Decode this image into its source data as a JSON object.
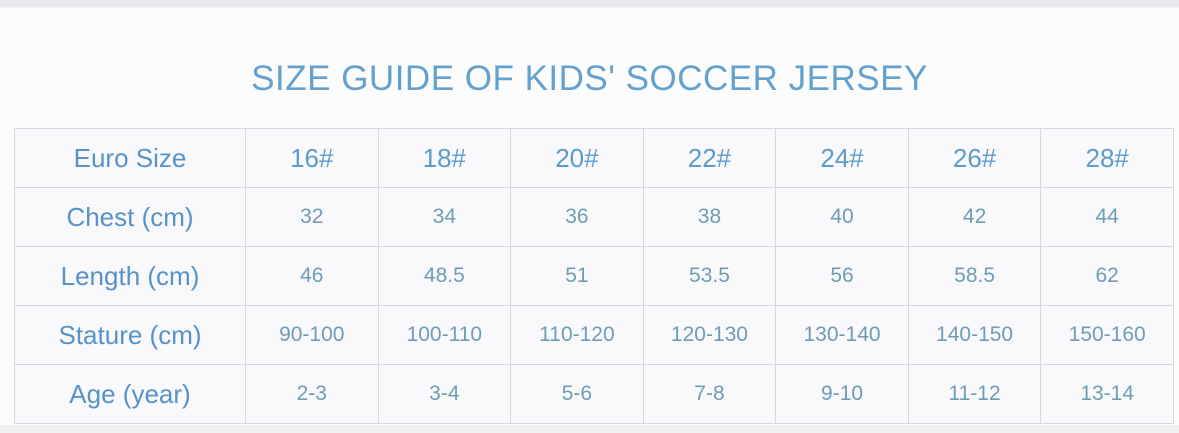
{
  "page": {
    "title": "SIZE GUIDE OF KIDS' SOCCER JERSEY"
  },
  "colors": {
    "title_blue": "#64a1cf",
    "label_blue": "#5792c8",
    "euro_size_value_blue": "#5b9ccd",
    "value_steel_blue": "#6f9cb4",
    "table_border": "#d7d7dd",
    "cell_background": "#f9f9fb",
    "top_band": "#e9e9ee",
    "bottom_band": "#f1f1f4"
  },
  "table": {
    "rows": [
      {
        "label": "Euro Size",
        "emphasis": true,
        "values": [
          "16#",
          "18#",
          "20#",
          "22#",
          "24#",
          "26#",
          "28#"
        ]
      },
      {
        "label": "Chest (cm)",
        "emphasis": false,
        "values": [
          "32",
          "34",
          "36",
          "38",
          "40",
          "42",
          "44"
        ]
      },
      {
        "label": "Length (cm)",
        "emphasis": false,
        "values": [
          "46",
          "48.5",
          "51",
          "53.5",
          "56",
          "58.5",
          "62"
        ]
      },
      {
        "label": "Stature (cm)",
        "emphasis": false,
        "values": [
          "90-100",
          "100-110",
          "110-120",
          "120-130",
          "130-140",
          "140-150",
          "150-160"
        ]
      },
      {
        "label": "Age (year)",
        "emphasis": false,
        "values": [
          "2-3",
          "3-4",
          "5-6",
          "7-8",
          "9-10",
          "11-12",
          "13-14"
        ]
      }
    ]
  },
  "chart_data": {
    "type": "table",
    "title": "SIZE GUIDE OF KIDS' SOCCER JERSEY",
    "row_headers": [
      "Euro Size",
      "Chest (cm)",
      "Length (cm)",
      "Stature (cm)",
      "Age (year)"
    ],
    "columns": [
      "16#",
      "18#",
      "20#",
      "22#",
      "24#",
      "26#",
      "28#"
    ],
    "rows": [
      [
        "16#",
        "18#",
        "20#",
        "22#",
        "24#",
        "26#",
        "28#"
      ],
      [
        32,
        34,
        36,
        38,
        40,
        42,
        44
      ],
      [
        46,
        48.5,
        51,
        53.5,
        56,
        58.5,
        62
      ],
      [
        "90-100",
        "100-110",
        "110-120",
        "120-130",
        "130-140",
        "140-150",
        "150-160"
      ],
      [
        "2-3",
        "3-4",
        "5-6",
        "7-8",
        "9-10",
        "11-12",
        "13-14"
      ]
    ]
  }
}
